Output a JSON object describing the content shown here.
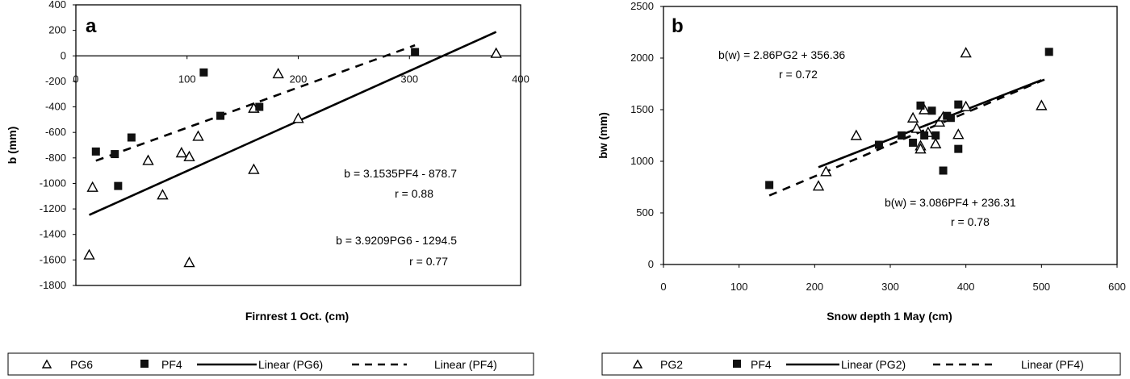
{
  "charts": [
    {
      "panel_label": "a",
      "type": "scatter",
      "xlabel": "Firnrest 1 Oct.  (cm)",
      "ylabel": "b (mm)",
      "xlim": [
        0,
        400
      ],
      "ylim": [
        -1800,
        400
      ],
      "xticks": [
        0,
        100,
        200,
        300,
        400
      ],
      "yticks": [
        400,
        200,
        0,
        -200,
        -400,
        -600,
        -800,
        -1000,
        -1200,
        -1400,
        -1600,
        -1800
      ],
      "series": [
        {
          "name": "PG6",
          "marker": "triangle",
          "points": [
            [
              15,
              -1030
            ],
            [
              12,
              -1560
            ],
            [
              65,
              -820
            ],
            [
              78,
              -1090
            ],
            [
              95,
              -760
            ],
            [
              102,
              -790
            ],
            [
              110,
              -630
            ],
            [
              102,
              -1620
            ],
            [
              160,
              -410
            ],
            [
              160,
              -890
            ],
            [
              182,
              -140
            ],
            [
              200,
              -490
            ],
            [
              378,
              20
            ]
          ]
        },
        {
          "name": "PF4",
          "marker": "square",
          "points": [
            [
              18,
              -750
            ],
            [
              35,
              -770
            ],
            [
              38,
              -1020
            ],
            [
              50,
              -640
            ],
            [
              115,
              -130
            ],
            [
              130,
              -470
            ],
            [
              165,
              -400
            ],
            [
              305,
              30
            ]
          ]
        }
      ],
      "fits": [
        {
          "name": "Linear (PG6)",
          "style": "solid",
          "slope": 3.9209,
          "intercept": -1294.5,
          "x_range": [
            12,
            378
          ]
        },
        {
          "name": "Linear (PF4)",
          "style": "dashed",
          "slope": 3.1535,
          "intercept": -878.7,
          "x_range": [
            18,
            305
          ]
        }
      ],
      "annotations": [
        {
          "line1": "b = 3.1535PF4 - 878.7",
          "line2": "r = 0.88"
        },
        {
          "line1": "b = 3.9209PG6 - 1294.5",
          "line2": "r = 0.77"
        }
      ],
      "zero_line": true
    },
    {
      "panel_label": "b",
      "type": "scatter",
      "xlabel": "Snow depth 1 May  (cm)",
      "ylabel": "bw (mm)",
      "xlim": [
        0,
        600
      ],
      "ylim": [
        0,
        2500
      ],
      "xticks": [
        0,
        100,
        200,
        300,
        400,
        500,
        600
      ],
      "yticks": [
        2500,
        2000,
        1500,
        1000,
        500,
        0
      ],
      "series": [
        {
          "name": "PG2",
          "marker": "triangle",
          "points": [
            [
              205,
              760
            ],
            [
              215,
              900
            ],
            [
              255,
              1250
            ],
            [
              330,
              1420
            ],
            [
              335,
              1320
            ],
            [
              340,
              1150
            ],
            [
              340,
              1120
            ],
            [
              345,
              1500
            ],
            [
              350,
              1280
            ],
            [
              360,
              1170
            ],
            [
              365,
              1380
            ],
            [
              370,
              1430
            ],
            [
              390,
              1260
            ],
            [
              400,
              2050
            ],
            [
              400,
              1530
            ],
            [
              500,
              1540
            ]
          ]
        },
        {
          "name": "PF4",
          "marker": "square",
          "points": [
            [
              140,
              770
            ],
            [
              285,
              1160
            ],
            [
              315,
              1250
            ],
            [
              330,
              1180
            ],
            [
              340,
              1540
            ],
            [
              345,
              1250
            ],
            [
              355,
              1490
            ],
            [
              360,
              1250
            ],
            [
              370,
              910
            ],
            [
              375,
              1440
            ],
            [
              380,
              1420
            ],
            [
              390,
              1550
            ],
            [
              390,
              1120
            ],
            [
              510,
              2060
            ]
          ]
        }
      ],
      "fits": [
        {
          "name": "Linear (PG2)",
          "style": "solid",
          "slope": 2.86,
          "intercept": 356.36,
          "x_range": [
            205,
            500
          ]
        },
        {
          "name": "Linear (PF4)",
          "style": "dashed",
          "slope": 3.086,
          "intercept": 236.31,
          "x_range": [
            140,
            510
          ]
        }
      ],
      "annotations": [
        {
          "line1": "b(w) = 2.86PG2 + 356.36",
          "line2": "r = 0.72"
        },
        {
          "line1": "b(w) = 3.086PF4 + 236.31",
          "line2": "r = 0.78"
        }
      ],
      "zero_line": false
    }
  ]
}
